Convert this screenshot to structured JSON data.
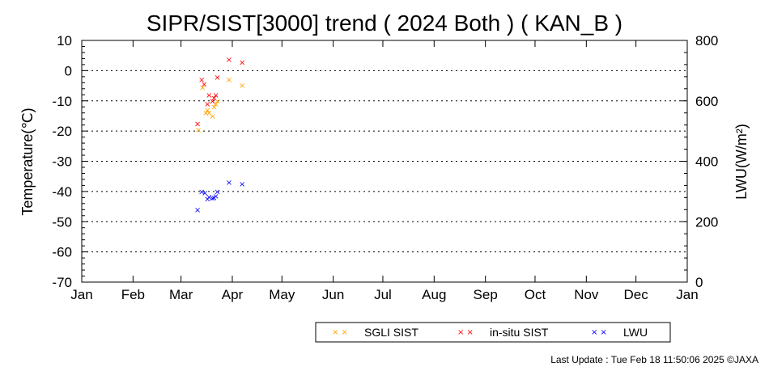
{
  "chart_data": {
    "type": "scatter",
    "title": "SIPR/SIST[3000] trend ( 2024 Both ) ( KAN_B )",
    "ylabel": "Temperature(℃)",
    "y2label": "LWU(W/m²)",
    "ylim": [
      -70,
      10
    ],
    "y2lim": [
      0,
      800
    ],
    "yticks": [
      "10",
      "0",
      "-10",
      "-20",
      "-30",
      "-40",
      "-50",
      "-60",
      "-70"
    ],
    "y2ticks": [
      "800",
      "600",
      "400",
      "200",
      "0"
    ],
    "xticks": [
      "Jan",
      "Feb",
      "Mar",
      "Apr",
      "May",
      "Jun",
      "Jul",
      "Aug",
      "Sep",
      "Oct",
      "Nov",
      "Dec",
      "Jan"
    ],
    "grid": "horizontal-dotted",
    "legend_position": "bottom",
    "series": [
      {
        "name": "SGLI SIST",
        "color": "#ffa500",
        "axis": "left",
        "points": [
          [
            70.5,
            -19.5
          ],
          [
            73.0,
            -5.5
          ],
          [
            75.0,
            -14.0
          ],
          [
            76.0,
            -13.0
          ],
          [
            77.0,
            -14.0
          ],
          [
            79.0,
            -15.0
          ],
          [
            80.0,
            -12.0
          ],
          [
            81.0,
            -11.0
          ],
          [
            82.0,
            -10.0
          ],
          [
            89.0,
            -3.0
          ],
          [
            97.0,
            -4.8
          ]
        ]
      },
      {
        "name": "in-situ SIST",
        "color": "#ff0000",
        "axis": "left",
        "points": [
          [
            70.0,
            -17.5
          ],
          [
            72.5,
            -3.0
          ],
          [
            74.0,
            -4.5
          ],
          [
            76.0,
            -11.0
          ],
          [
            77.0,
            -8.0
          ],
          [
            79.0,
            -10.0
          ],
          [
            80.0,
            -9.0
          ],
          [
            81.0,
            -8.0
          ],
          [
            82.0,
            -2.2
          ],
          [
            89.0,
            3.7
          ],
          [
            97.0,
            2.8
          ]
        ]
      },
      {
        "name": "LWU",
        "color": "#0000ff",
        "axis": "right",
        "points": [
          [
            70.0,
            240
          ],
          [
            72.5,
            300
          ],
          [
            74.5,
            295
          ],
          [
            76.0,
            275
          ],
          [
            77.0,
            282
          ],
          [
            79.0,
            278
          ],
          [
            80.0,
            280
          ],
          [
            81.0,
            285
          ],
          [
            82.0,
            300
          ],
          [
            89.0,
            330
          ],
          [
            97.0,
            325
          ]
        ]
      }
    ]
  },
  "footer": {
    "last_update": "Last Update : Tue Feb 18 11:50:06 2025  ©JAXA"
  }
}
